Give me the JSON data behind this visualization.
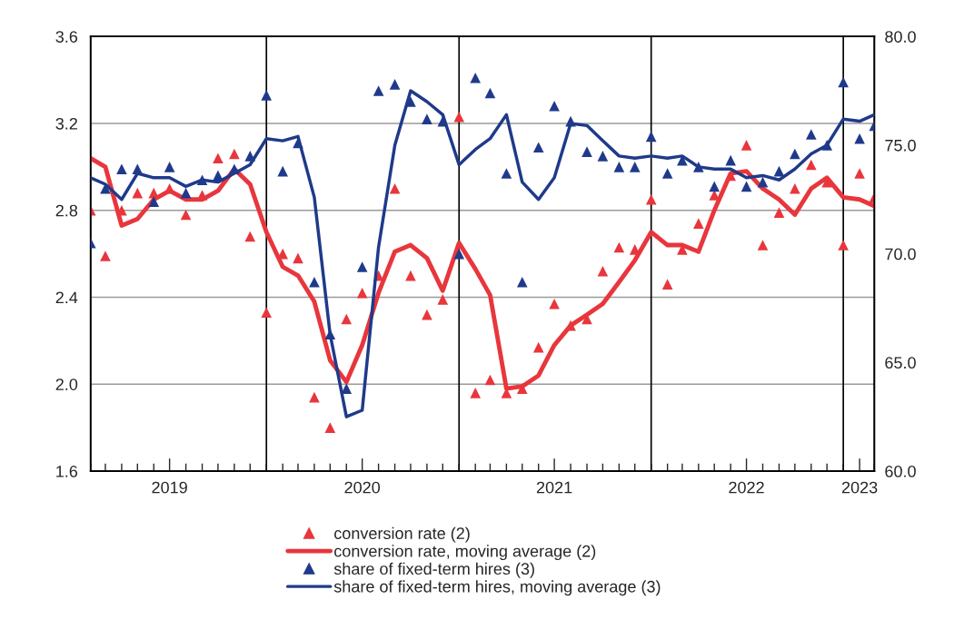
{
  "chart_data": {
    "type": "line",
    "x": [
      "2019-02",
      "2019-03",
      "2019-04",
      "2019-05",
      "2019-06",
      "2019-07",
      "2019-08",
      "2019-09",
      "2019-10",
      "2019-11",
      "2019-12",
      "2020-01",
      "2020-02",
      "2020-03",
      "2020-04",
      "2020-05",
      "2020-06",
      "2020-07",
      "2020-08",
      "2020-09",
      "2020-10",
      "2020-11",
      "2020-12",
      "2021-01",
      "2021-02",
      "2021-03",
      "2021-04",
      "2021-05",
      "2021-06",
      "2021-07",
      "2021-08",
      "2021-09",
      "2021-10",
      "2021-11",
      "2021-12",
      "2022-01",
      "2022-02",
      "2022-03",
      "2022-04",
      "2022-05",
      "2022-06",
      "2022-07",
      "2022-08",
      "2022-09",
      "2022-10",
      "2022-11",
      "2022-12",
      "2023-01",
      "2023-02",
      "2023-03"
    ],
    "xlim": [
      "2019-02",
      "2023-03"
    ],
    "xticks": [
      {
        "value": "2019-02",
        "label": null
      },
      {
        "value": "2019-03",
        "label": null
      },
      {
        "value": "2019-04",
        "label": null
      },
      {
        "value": "2019-05",
        "label": null
      },
      {
        "value": "2019-06",
        "label": null
      },
      {
        "value": "2019-07",
        "label": "2019"
      },
      {
        "value": "2019-08",
        "label": null
      },
      {
        "value": "2019-09",
        "label": null
      },
      {
        "value": "2019-10",
        "label": null
      },
      {
        "value": "2019-11",
        "label": null
      },
      {
        "value": "2019-12",
        "label": null
      },
      {
        "value": "2020-01",
        "label": null
      },
      {
        "value": "2020-02",
        "label": null
      },
      {
        "value": "2020-03",
        "label": null
      },
      {
        "value": "2020-04",
        "label": null
      },
      {
        "value": "2020-05",
        "label": null
      },
      {
        "value": "2020-06",
        "label": null
      },
      {
        "value": "2020-07",
        "label": "2020"
      },
      {
        "value": "2020-08",
        "label": null
      },
      {
        "value": "2020-09",
        "label": null
      },
      {
        "value": "2020-10",
        "label": null
      },
      {
        "value": "2020-11",
        "label": null
      },
      {
        "value": "2020-12",
        "label": null
      },
      {
        "value": "2021-01",
        "label": null
      },
      {
        "value": "2021-02",
        "label": null
      },
      {
        "value": "2021-03",
        "label": null
      },
      {
        "value": "2021-04",
        "label": null
      },
      {
        "value": "2021-05",
        "label": null
      },
      {
        "value": "2021-06",
        "label": null
      },
      {
        "value": "2021-07",
        "label": "2021"
      },
      {
        "value": "2021-08",
        "label": null
      },
      {
        "value": "2021-09",
        "label": null
      },
      {
        "value": "2021-10",
        "label": null
      },
      {
        "value": "2021-11",
        "label": null
      },
      {
        "value": "2021-12",
        "label": null
      },
      {
        "value": "2022-01",
        "label": null
      },
      {
        "value": "2022-02",
        "label": null
      },
      {
        "value": "2022-03",
        "label": null
      },
      {
        "value": "2022-04",
        "label": null
      },
      {
        "value": "2022-05",
        "label": null
      },
      {
        "value": "2022-06",
        "label": null
      },
      {
        "value": "2022-07",
        "label": "2022"
      },
      {
        "value": "2022-08",
        "label": null
      },
      {
        "value": "2022-09",
        "label": null
      },
      {
        "value": "2022-10",
        "label": null
      },
      {
        "value": "2022-11",
        "label": null
      },
      {
        "value": "2022-12",
        "label": null
      },
      {
        "value": "2023-01",
        "label": null
      },
      {
        "value": "2023-02",
        "label": "2023"
      },
      {
        "value": "2023-03",
        "label": null
      }
    ],
    "ylim": [
      1.6,
      3.6
    ],
    "yticks": [
      1.6,
      {
        "value": 2,
        "label": "2.0"
      },
      2.4,
      2.8,
      3.2,
      3.6
    ],
    "y2lim": [
      60,
      80
    ],
    "y2ticks": [
      {
        "value": 60,
        "label": "60.0"
      },
      {
        "value": 65,
        "label": "65.0"
      },
      {
        "value": 70,
        "label": "70.0"
      },
      {
        "value": 75,
        "label": "75.0"
      },
      {
        "value": 80,
        "label": "80.0"
      }
    ],
    "grid": "y",
    "legend": "bottom",
    "ref_lines": [
      {
        "axis": "x",
        "value": "2020-01",
        "color": "#000000"
      },
      {
        "axis": "x",
        "value": "2021-01",
        "color": "#000000"
      },
      {
        "axis": "x",
        "value": "2022-01",
        "color": "#000000"
      },
      {
        "axis": "x",
        "value": "2023-01",
        "color": "#000000"
      }
    ],
    "series": [
      {
        "name": "conversion rate (2)",
        "type": "scatter",
        "marker": "triangle",
        "color": "#e8363c",
        "values": [
          2.8,
          2.59,
          2.8,
          2.88,
          2.88,
          2.9,
          2.78,
          2.87,
          3.04,
          3.06,
          2.68,
          2.33,
          2.6,
          2.58,
          1.94,
          1.8,
          2.3,
          2.42,
          2.5,
          2.9,
          2.5,
          2.32,
          2.39,
          3.23,
          1.96,
          2.02,
          1.96,
          1.98,
          2.17,
          2.37,
          2.27,
          2.3,
          2.52,
          2.63,
          2.62,
          2.85,
          2.46,
          2.62,
          2.74,
          2.87,
          2.96,
          3.1,
          2.64,
          2.79,
          2.9,
          3.01,
          2.93,
          2.64,
          2.97,
          2.86
        ]
      },
      {
        "name": "conversion rate, moving average (2)",
        "color": "#e8363c",
        "values": [
          3.04,
          3.0,
          2.73,
          2.76,
          2.85,
          2.89,
          2.85,
          2.85,
          2.89,
          2.99,
          2.92,
          2.7,
          2.54,
          2.5,
          2.38,
          2.11,
          2.01,
          2.18,
          2.42,
          2.61,
          2.64,
          2.58,
          2.43,
          2.65,
          2.53,
          2.41,
          1.98,
          1.99,
          2.04,
          2.18,
          2.27,
          2.32,
          2.37,
          2.47,
          2.57,
          2.7,
          2.64,
          2.64,
          2.61,
          2.8,
          2.97,
          2.98,
          2.9,
          2.85,
          2.78,
          2.9,
          2.95,
          2.86,
          2.85,
          2.82
        ]
      },
      {
        "name": "share of fixed-term hires (3)",
        "type": "scatter",
        "marker": "triangle",
        "axis": "y2",
        "color": "#1f3a8a",
        "values": [
          70.5,
          73.0,
          73.9,
          73.9,
          72.4,
          74.0,
          72.8,
          73.4,
          73.6,
          73.9,
          74.5,
          77.3,
          73.8,
          75.1,
          68.7,
          66.3,
          63.8,
          69.4,
          77.5,
          77.8,
          77.0,
          76.2,
          76.1,
          70.0,
          78.1,
          77.4,
          73.7,
          68.7,
          74.9,
          76.8,
          76.1,
          74.7,
          74.5,
          74.0,
          74.0,
          75.4,
          73.7,
          74.3,
          74.0,
          73.1,
          74.3,
          73.1,
          73.3,
          73.8,
          74.6,
          75.5,
          75.0,
          77.9,
          75.3,
          75.9
        ]
      },
      {
        "name": "share of fixed-term hires, moving average (3)",
        "axis": "y2",
        "color": "#1f3a8a",
        "values": [
          73.5,
          73.2,
          72.5,
          73.7,
          73.5,
          73.5,
          73.1,
          73.4,
          73.3,
          73.7,
          74.1,
          75.3,
          75.2,
          75.4,
          72.6,
          66.3,
          62.5,
          62.8,
          70.3,
          75.0,
          77.5,
          77.0,
          76.4,
          74.1,
          74.8,
          75.3,
          76.4,
          73.3,
          72.5,
          73.5,
          76.0,
          75.9,
          75.2,
          74.5,
          74.4,
          74.5,
          74.4,
          74.5,
          74.0,
          73.9,
          73.9,
          73.5,
          73.6,
          73.4,
          73.9,
          74.6,
          75.0,
          76.2,
          76.1,
          76.4
        ]
      }
    ]
  }
}
